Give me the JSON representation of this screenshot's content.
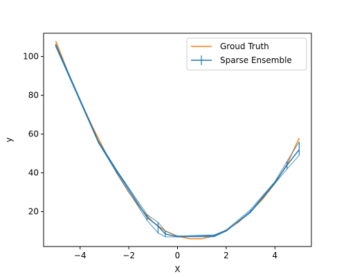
{
  "chart_data": {
    "type": "line",
    "title": "",
    "xlabel": "X",
    "ylabel": "y",
    "xlim": [
      -5.5,
      5.5
    ],
    "ylim": [
      2,
      112
    ],
    "xticks": [
      -4,
      -2,
      0,
      2,
      4
    ],
    "yticks": [
      20,
      40,
      60,
      80,
      100
    ],
    "xtick_labels": [
      "−4",
      "−2",
      "0",
      "2",
      "4"
    ],
    "ytick_labels": [
      "20",
      "40",
      "60",
      "80",
      "100"
    ],
    "legend_position": "top-right",
    "colors": {
      "truth": "#ff7f0e",
      "ensemble": "#1f77b4",
      "frame": "#000000"
    },
    "series": [
      {
        "name": "Groud Truth",
        "style": "line",
        "x": [
          -5.0,
          -4.5,
          -4.0,
          -3.5,
          -3.0,
          -2.5,
          -2.0,
          -1.5,
          -1.0,
          -0.5,
          0.0,
          0.5,
          1.0,
          1.5,
          2.0,
          2.5,
          3.0,
          3.5,
          4.0,
          4.5,
          5.0
        ],
        "y": [
          108,
          92,
          77.5,
          64,
          51.5,
          40,
          30,
          21.5,
          14.5,
          10,
          7.3,
          6,
          6,
          7.5,
          10.5,
          14.5,
          20,
          26.5,
          34.5,
          44.5,
          58
        ]
      },
      {
        "name": "Sparse Ensemble",
        "style": "errorbar",
        "x": [
          -5.0,
          -3.25,
          -2.5,
          -1.25,
          -0.8,
          -0.5,
          0.0,
          1.5,
          2.0,
          3.0,
          4.0,
          4.5,
          5.0
        ],
        "y": [
          106,
          56,
          41,
          17,
          12.5,
          8.5,
          7,
          7.5,
          10,
          20,
          35,
          44,
          52
        ],
        "ylow": [
          105,
          55.5,
          40,
          15.5,
          9,
          7,
          7,
          7,
          10,
          19.5,
          34.5,
          42,
          49
        ],
        "yhigh": [
          106.5,
          56.5,
          41.5,
          18.5,
          14.5,
          10,
          7.5,
          8,
          10.5,
          21,
          35.5,
          46,
          56
        ]
      }
    ]
  }
}
